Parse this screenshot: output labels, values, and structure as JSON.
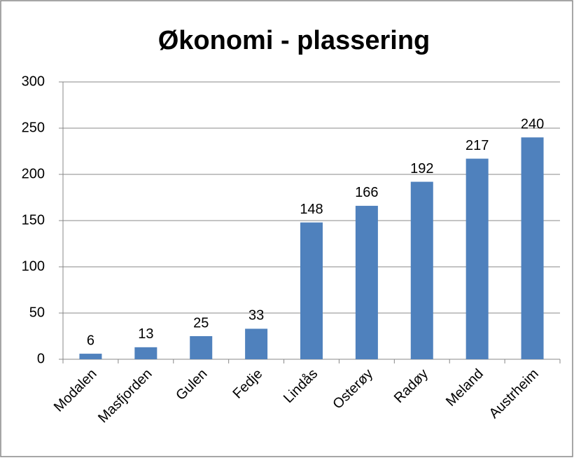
{
  "chart_data": {
    "type": "bar",
    "title": "Økonomi - plassering",
    "categories": [
      "Modalen",
      "Masfjorden",
      "Gulen",
      "Fedje",
      "Lindås",
      "Osterøy",
      "Radøy",
      "Meland",
      "Austrheim"
    ],
    "values": [
      6,
      13,
      25,
      33,
      148,
      166,
      192,
      217,
      240
    ],
    "color": "#4f81bd",
    "ylim": [
      0,
      300
    ],
    "yticks": [
      0,
      50,
      100,
      150,
      200,
      250,
      300
    ],
    "grid": true,
    "data_labels": true
  }
}
